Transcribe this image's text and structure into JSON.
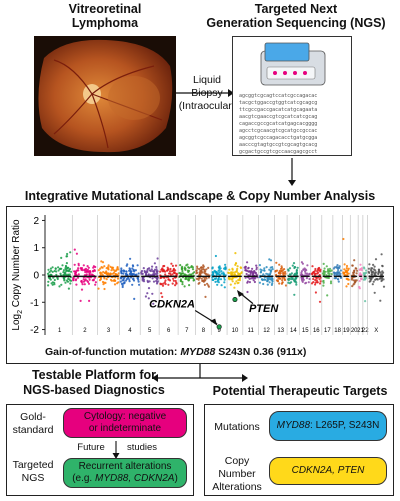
{
  "top": {
    "vitreo_title": [
      "Vitreoretinal",
      "Lymphoma"
    ],
    "ngs_title": [
      "Targeted Next",
      "Generation Sequencing (NGS)"
    ],
    "biopsy_label": [
      "Liquid",
      "Biopsy",
      "(Intraocular)"
    ],
    "seq_lines": [
      "agcggtcgcagtccatcgccagacac",
      "tacgctggaccgtggtcatcgcagcg",
      "ttcgccgaccgacatcatgcagaata",
      "aacgtcgaaccgtcgcatcatcgcag",
      "cagaccgccgcatcatgagcacgggg",
      "agcctcgcaacgtcgcatgccgccac",
      "agcggtcgccagacacctgatgcgga",
      "aacccgtagtgccgtcgcagtgcacg",
      "gcgactgccgtcgccaacgagcgcct"
    ]
  },
  "panel": {
    "title": "Integrative Mutational Landscape & Copy Number Analysis",
    "ylabel_parts": [
      "Log",
      "2",
      " Copy Number Ratio"
    ],
    "gof_prefix": "Gain-of-function mutation: ",
    "gof_gene": "MYD88",
    "gof_suffix": " S243N 0.36 (911x)",
    "annotations": {
      "cdkn2a": "CDKN2A",
      "pten": "PTEN"
    }
  },
  "chart_data": {
    "type": "scatter",
    "ylabel": "Log2 Copy Number Ratio",
    "ylim": [
      -2.2,
      2.2
    ],
    "yticks": [
      2,
      1,
      0,
      -1,
      -2
    ],
    "chromosome_labels": [
      "1",
      "2",
      "3",
      "4",
      "5",
      "6",
      "7",
      "8",
      "9",
      "10",
      "11",
      "12",
      "13",
      "14",
      "15",
      "16",
      "17",
      "18",
      "19",
      "20",
      "21",
      "22",
      "X"
    ],
    "chromosome_weights": [
      8,
      8,
      7,
      6.5,
      6,
      6,
      5.5,
      5,
      5,
      5,
      5,
      5,
      4,
      4,
      3.5,
      3.5,
      3.5,
      3,
      2.5,
      2.5,
      1.5,
      1.5,
      5.5
    ],
    "colors": [
      "#1a9e4a",
      "#e6007e",
      "#ff7f00",
      "#1f5fbf",
      "#6a3d9a",
      "#e31a1c",
      "#33a02c",
      "#b15928",
      "#00a0c6",
      "#f0c000",
      "#7b3294",
      "#2b8cbe",
      "#d95f0e",
      "#1b9e77",
      "#984ea3",
      "#e41a1c",
      "#4daf4a",
      "#377eb8",
      "#ff7f00",
      "#a65628",
      "#f781bf",
      "#66c2a5",
      "#555555"
    ],
    "highlights": [
      {
        "label": "CDKN2A",
        "x_chrom": "9",
        "y": -1.9
      },
      {
        "label": "PTEN",
        "x_chrom": "10",
        "y": -0.9
      }
    ]
  },
  "left_box": {
    "title": [
      "Testable Platform for",
      "NGS-based Diagnostics"
    ],
    "gold_label": [
      "Gold-",
      "standard"
    ],
    "cytology": [
      "Cytology: negative",
      "or indeterminate"
    ],
    "future": "Future",
    "studies": "studies",
    "targeted_label": [
      "Targeted",
      "NGS"
    ],
    "recurrent_line1": "Recurrent alterations",
    "recurrent_prefix": "(e.g. ",
    "recurrent_genes": "MYD88, CDKN2A",
    "recurrent_suffix": ")"
  },
  "right_box": {
    "title": "Potential Therapeutic Targets",
    "mutations_label": "Mutations",
    "myd88_gene": "MYD88",
    "myd88_rest": ": L265P, S243N",
    "cn_label": [
      "Copy Number",
      "Alterations"
    ],
    "cn_genes": "CDKN2A, PTEN"
  },
  "colors": {
    "cytology_fill": "#e6007e",
    "recurrent_fill": "#2fb36a",
    "mutations_fill": "#29abe2",
    "cn_fill": "#ffd91a"
  }
}
